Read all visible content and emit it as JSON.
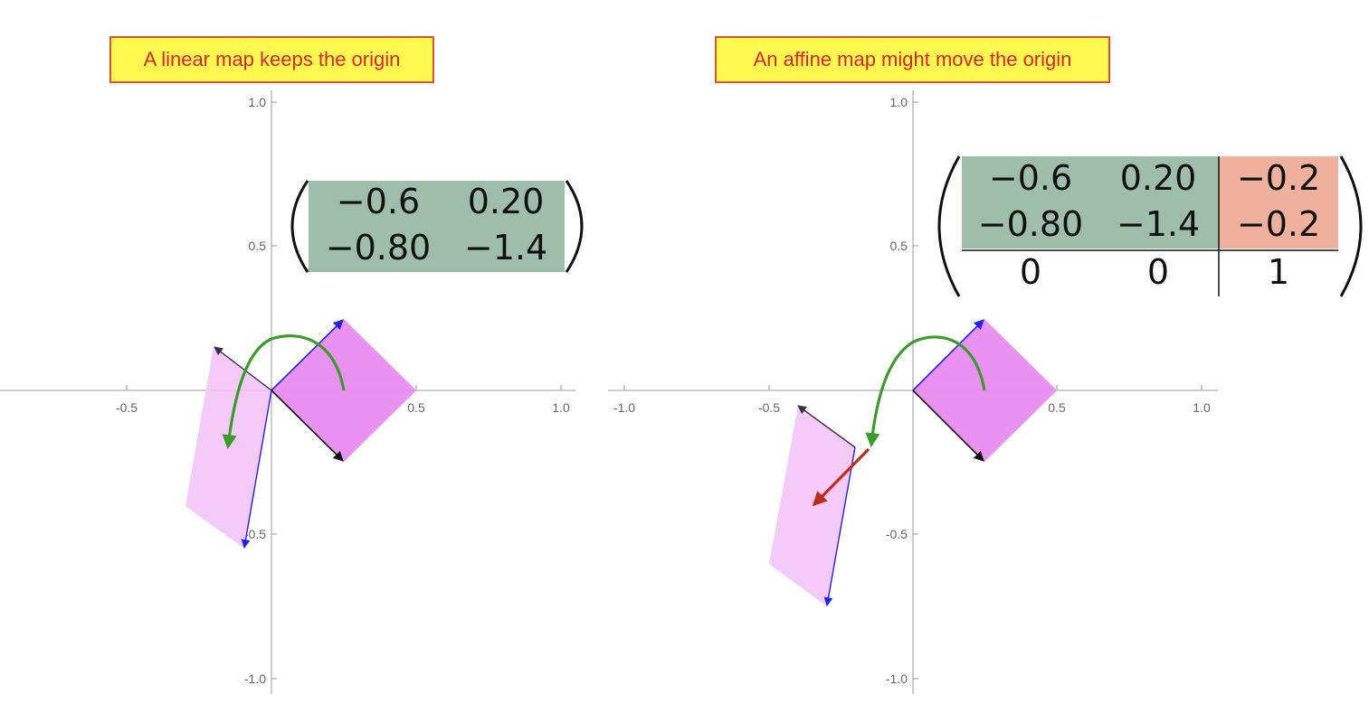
{
  "captions": {
    "left": "A linear map keeps the origin",
    "right": "An affine map might move the origin"
  },
  "colors": {
    "caption_bg": "#fff84f",
    "caption_border": "#e0522a",
    "caption_text": "#d8262a",
    "original_square": "#e98cf0",
    "image_parallelogram": "#f3c4f7",
    "basis_x": "#2323e8",
    "basis_y": "#111111",
    "map_arrow": "#3a9a2a",
    "translation_arrow": "#c42a1c",
    "matrix_linear": "#9fbdab",
    "matrix_translation": "#efb09e"
  },
  "left_plot": {
    "y_ticks": [
      "1.0",
      "0.5",
      "-0.5",
      "-1.0"
    ],
    "x_ticks": [
      "-0.5",
      "0.5",
      "1.0"
    ],
    "matrix": [
      [
        "−0.6",
        "0.20"
      ],
      [
        "−0.80",
        "−1.4"
      ]
    ]
  },
  "right_plot": {
    "y_ticks": [
      "1.0",
      "0.5",
      "-0.5",
      "-1.0"
    ],
    "x_ticks": [
      "-1.0",
      "-0.5",
      "0.5",
      "1.0"
    ],
    "matrix": [
      [
        "−0.6",
        "0.20",
        "−0.2"
      ],
      [
        "−0.80",
        "−1.4",
        "−0.2"
      ],
      [
        "0",
        "0",
        "1"
      ]
    ]
  }
}
